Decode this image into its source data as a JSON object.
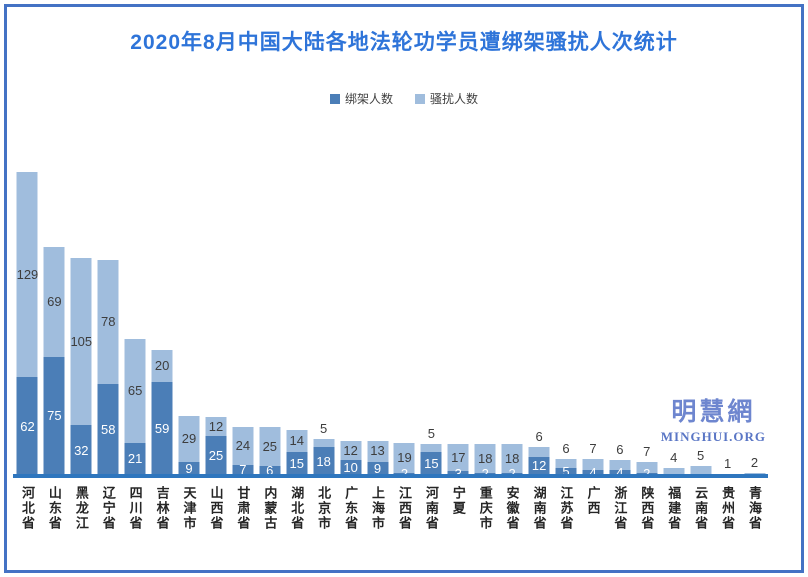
{
  "page": {
    "border_color": "#4472c4",
    "background_color": "#ffffff"
  },
  "chart": {
    "title": "2020年8月中国大陆各地法轮功学员遭绑架骚扰人次统计",
    "title_color": "#2e74d9"
  },
  "legend": {
    "items": [
      {
        "label": "绑架人数",
        "color": "#4b7eb7"
      },
      {
        "label": "骚扰人数",
        "color": "#a0bddd"
      }
    ]
  },
  "logo": {
    "cn": "明慧網",
    "latin": "MINGHUI.ORG"
  },
  "chart_data": {
    "type": "bar",
    "stacked": true,
    "grid": false,
    "legend_position": "top",
    "ylim": [
      0,
      200
    ],
    "categories": [
      "河北省",
      "山东省",
      "黑龙江",
      "辽宁省",
      "四川省",
      "吉林省",
      "天津市",
      "山西省",
      "甘肃省",
      "内蒙古",
      "湖北省",
      "北京市",
      "广东省",
      "上海市",
      "江西省",
      "河南省",
      "宁夏",
      "重庆市",
      "安徽省",
      "湖南省",
      "江苏省",
      "广西",
      "浙江省",
      "陕西省",
      "福建省",
      "云南省",
      "贵州省",
      "青海省"
    ],
    "series": [
      {
        "name": "绑架人数",
        "color": "#4b7eb7",
        "values": [
          62,
          75,
          32,
          58,
          21,
          59,
          9,
          25,
          7,
          6,
          15,
          18,
          10,
          9,
          2,
          15,
          3,
          2,
          2,
          12,
          5,
          4,
          4,
          2,
          1,
          1,
          1,
          0
        ],
        "labels": [
          "62",
          "75",
          "32",
          "58",
          "21",
          "59",
          "9",
          "25",
          "7",
          "6",
          "15",
          "18",
          "10",
          "9",
          "2",
          "15",
          "3",
          "2",
          "2",
          "12",
          "5",
          "4",
          "4",
          "2",
          "",
          "",
          "1",
          ""
        ]
      },
      {
        "name": "骚扰人数",
        "color": "#a0bddd",
        "values": [
          129,
          69,
          105,
          78,
          65,
          20,
          29,
          12,
          24,
          25,
          14,
          5,
          12,
          13,
          19,
          5,
          17,
          18,
          18,
          6,
          6,
          7,
          6,
          7,
          4,
          5,
          0,
          2
        ],
        "labels": [
          "129",
          "69",
          "105",
          "78",
          "65",
          "20",
          "29",
          "12",
          "24",
          "25",
          "14",
          "5",
          "12",
          "13",
          "19",
          "5",
          "17",
          "18",
          "18",
          "6",
          "6",
          "7",
          "6",
          "7",
          "4",
          "5",
          "",
          "2"
        ]
      }
    ]
  }
}
